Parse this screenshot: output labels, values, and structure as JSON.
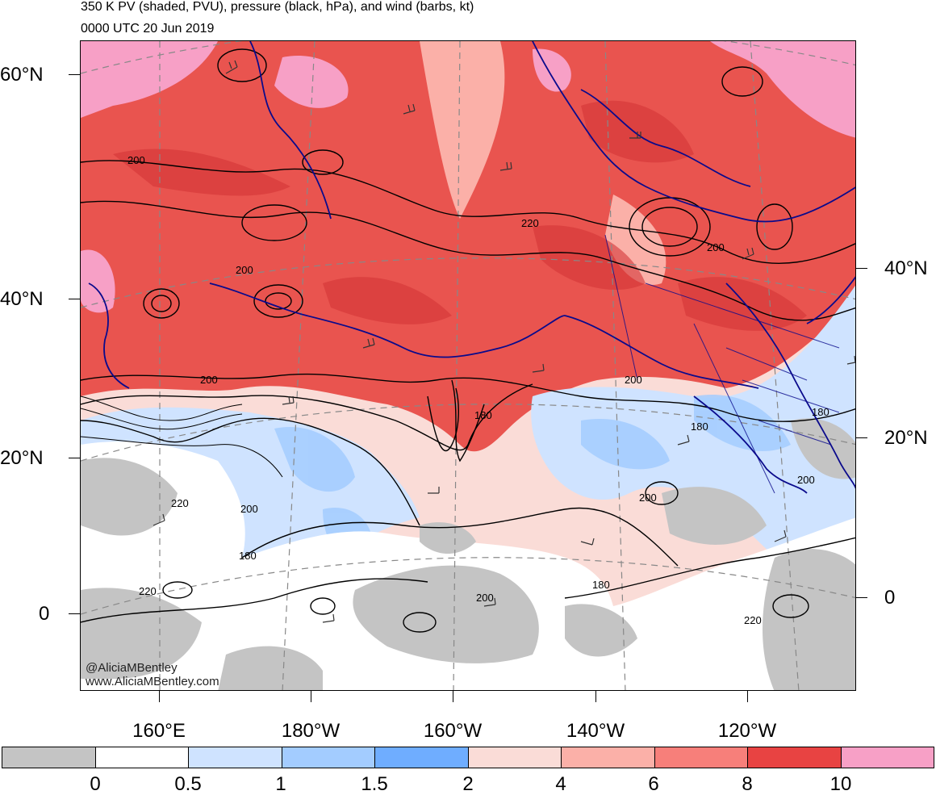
{
  "title": "350 K PV (shaded, PVU), pressure (black, hPa), and wind (barbs, kt)",
  "valid_time": "0000 UTC 20 Jun 2019",
  "lat_labels_left": [
    "60°N",
    "40°N",
    "20°N",
    "0"
  ],
  "lat_labels_right": [
    "40°N",
    "20°N",
    "0"
  ],
  "lon_labels": [
    "160°E",
    "180°W",
    "160°W",
    "140°W",
    "120°W"
  ],
  "contour_labels": [
    "200",
    "200",
    "200",
    "220",
    "200",
    "200",
    "180",
    "180",
    "180",
    "200",
    "200",
    "220",
    "200",
    "180",
    "220",
    "200",
    "180",
    "220"
  ],
  "credit": {
    "twitter": "@AliciaMBentley",
    "website": "www.AliciaMBentley.com"
  },
  "colorbar": {
    "labels": [
      "0",
      "0.5",
      "1",
      "1.5",
      "2",
      "4",
      "6",
      "8",
      "10"
    ],
    "colors": [
      "#c4c4c4",
      "#ffffff",
      "#cfe3ff",
      "#a3ccff",
      "#6fadff",
      "#fadcd7",
      "#fbb0a8",
      "#f77f7a",
      "#e84342",
      "#f7a0c6"
    ]
  },
  "palette": {
    "coastline": "#0a0a8c",
    "contour": "#000000",
    "grid": "#888888"
  }
}
